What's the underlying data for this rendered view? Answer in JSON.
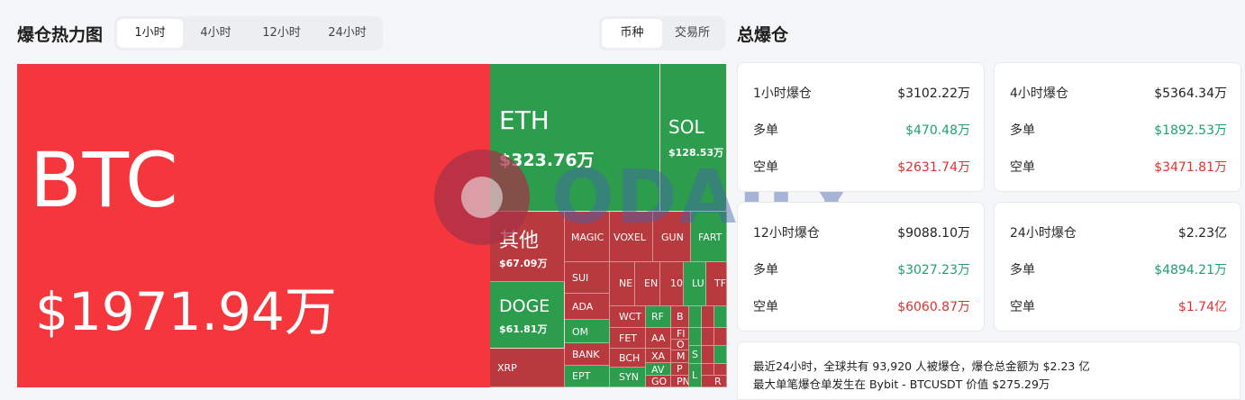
{
  "header": {
    "title": "爆仓热力图",
    "time_tabs": [
      "1小时",
      "4小时",
      "12小时",
      "24小时"
    ],
    "active_time_tab": "1小时",
    "type_tabs": [
      "币种",
      "交易所"
    ],
    "active_type_tab": "币种",
    "summary_title": "总爆仓"
  },
  "treemap": {
    "btc": {
      "name": "BTC",
      "value": "$1971.94万"
    },
    "eth": {
      "name": "ETH",
      "value": "$323.76万"
    },
    "sol": {
      "name": "SOL",
      "value": "$128.53万"
    },
    "other": {
      "name": "其他",
      "value": "$67.09万"
    },
    "doge": {
      "name": "DOGE",
      "value": "$61.81万"
    },
    "xrp": {
      "name": "XRP"
    },
    "labels": [
      "MAGIC",
      "VOXEL",
      "GUN",
      "FART",
      "SUI",
      "ADA",
      "OM",
      "BANK",
      "EPT",
      "NE",
      "EN",
      "10",
      "LU",
      "TF",
      "WCT",
      "RF",
      "FET",
      "AA",
      "BCH",
      "XA",
      "AV",
      "GO",
      "SYN",
      "B",
      "Fl",
      "O",
      "M",
      "P",
      "PN",
      "S",
      "L",
      "R"
    ]
  },
  "watermark": {
    "text": "ODAILY"
  },
  "stats": [
    {
      "title": "1小时爆仓",
      "total": "$3102.22万",
      "long_label": "多单",
      "long": "$470.48万",
      "short_label": "空单",
      "short": "$2631.74万"
    },
    {
      "title": "4小时爆仓",
      "total": "$5364.34万",
      "long_label": "多单",
      "long": "$1892.53万",
      "short_label": "空单",
      "short": "$3471.81万"
    },
    {
      "title": "12小时爆仓",
      "total": "$9088.10万",
      "long_label": "多单",
      "long": "$3027.23万",
      "short_label": "空单",
      "short": "$6060.87万"
    },
    {
      "title": "24小时爆仓",
      "total": "$2.23亿",
      "long_label": "多单",
      "long": "$4894.21万",
      "short_label": "空单",
      "short": "$1.74亿"
    }
  ],
  "summary": {
    "line1": "最近24小时，全球共有 93,920 人被爆仓，爆仓总金额为 $2.23 亿",
    "line2": "最大单笔爆仓单发生在 Bybit - BTCUSDT 价值 $275.29万"
  },
  "colors": {
    "liq_red": "#f5363d",
    "liq_green": "#2c9d4d",
    "up_text": "#1fa36b",
    "down_text": "#e0312f"
  }
}
